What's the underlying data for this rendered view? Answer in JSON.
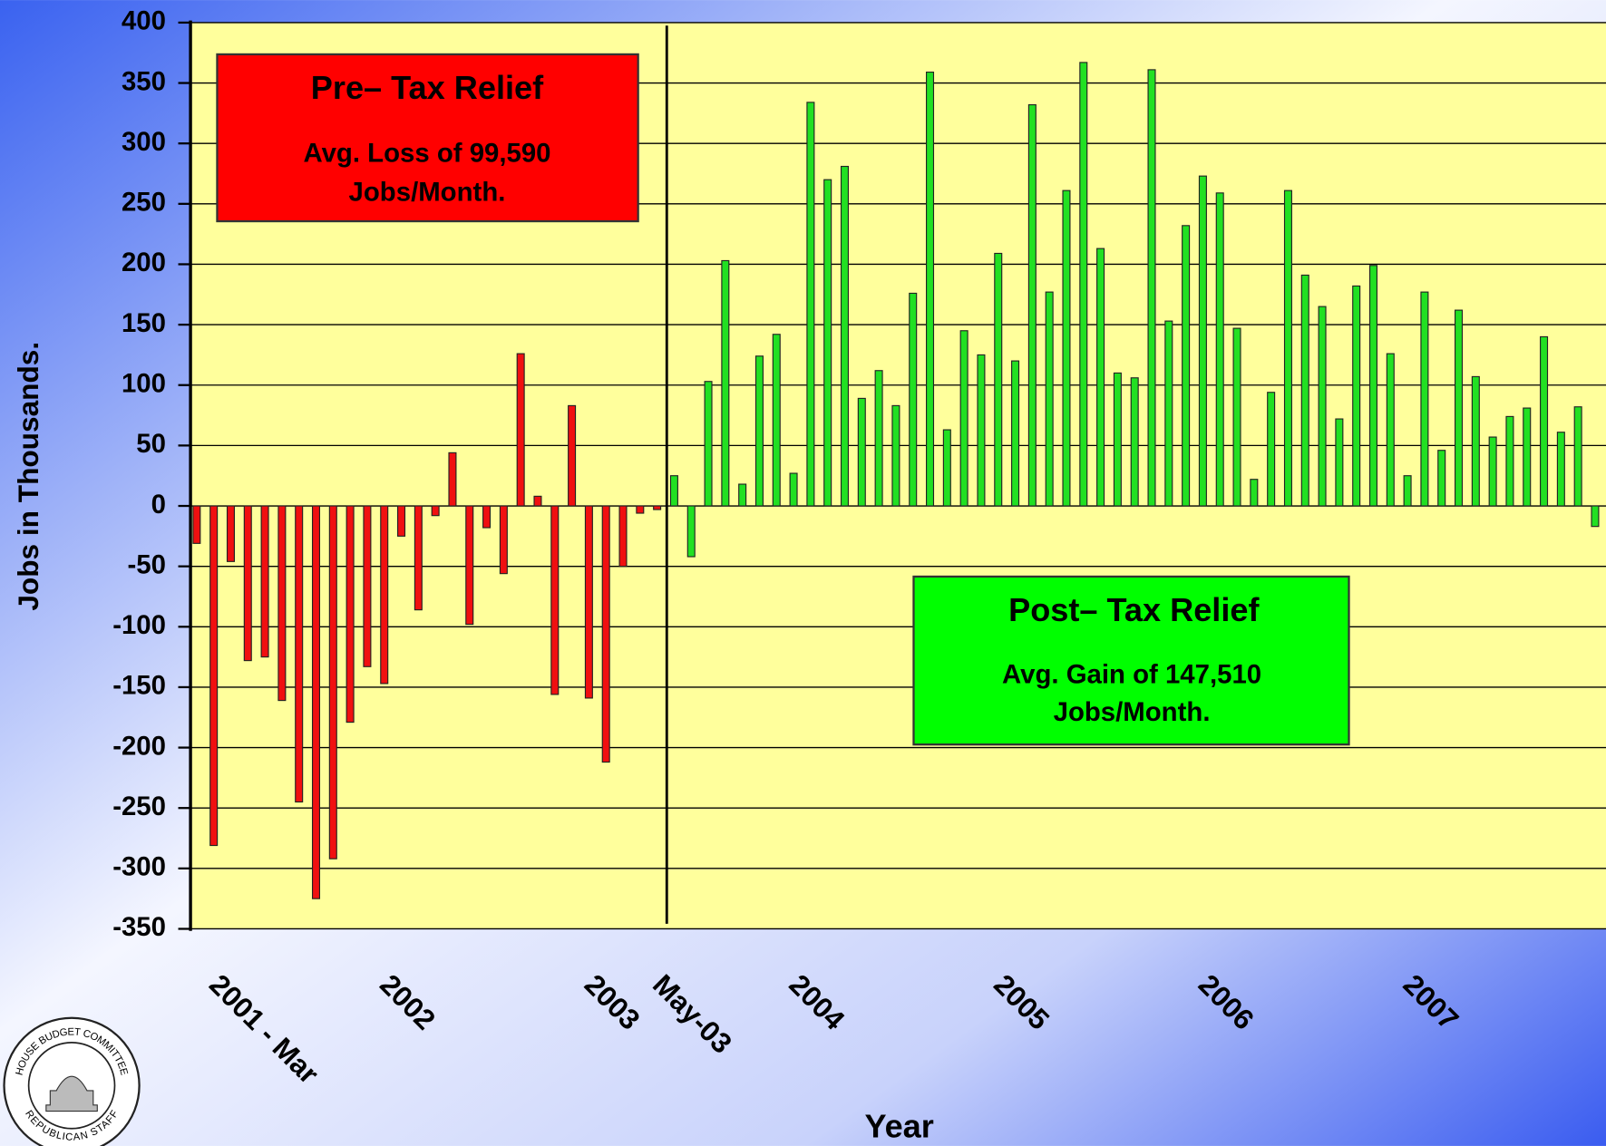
{
  "chart_data": {
    "type": "bar",
    "y_label": "Jobs in Thousands.",
    "x_label": "Year",
    "categories": [
      "2001 - Mar",
      null,
      null,
      null,
      null,
      null,
      null,
      null,
      null,
      null,
      "2002",
      null,
      null,
      null,
      null,
      null,
      null,
      null,
      null,
      null,
      null,
      null,
      "2003",
      null,
      null,
      null,
      "May-03",
      null,
      null,
      null,
      null,
      null,
      null,
      null,
      "2004",
      null,
      null,
      null,
      null,
      null,
      null,
      null,
      null,
      null,
      null,
      null,
      "2005",
      null,
      null,
      null,
      null,
      null,
      null,
      null,
      null,
      null,
      null,
      null,
      "2006",
      null,
      null,
      null,
      null,
      null,
      null,
      null,
      null,
      null,
      null,
      null,
      "2007",
      null,
      null,
      null,
      null,
      null,
      null,
      null,
      null,
      null,
      null,
      null,
      null
    ],
    "values": [
      -31,
      -281,
      -46,
      -128,
      -125,
      -161,
      -245,
      -325,
      -292,
      -179,
      -133,
      -147,
      -25,
      -86,
      -8,
      44,
      -98,
      -18,
      -56,
      126,
      8,
      -156,
      83,
      -159,
      -212,
      -50,
      -6,
      -3,
      25,
      -42,
      103,
      203,
      18,
      124,
      142,
      27,
      334,
      270,
      281,
      89,
      112,
      83,
      176,
      359,
      63,
      145,
      125,
      209,
      120,
      332,
      177,
      261,
      367,
      213,
      110,
      106,
      361,
      153,
      232,
      273,
      259,
      147,
      22,
      94,
      261,
      191,
      165,
      72,
      182,
      199,
      126,
      25,
      177,
      46,
      162,
      107,
      57,
      74,
      81,
      140,
      61,
      82,
      -17
    ],
    "colors": [
      "#f01010",
      "#f01010",
      "#f01010",
      "#f01010",
      "#f01010",
      "#f01010",
      "#f01010",
      "#f01010",
      "#f01010",
      "#f01010",
      "#f01010",
      "#f01010",
      "#f01010",
      "#f01010",
      "#f01010",
      "#f01010",
      "#f01010",
      "#f01010",
      "#f01010",
      "#f01010",
      "#f01010",
      "#f01010",
      "#f01010",
      "#f01010",
      "#f01010",
      "#f01010",
      "#f01010",
      "#f01010",
      "#22e022",
      "#22e022",
      "#22e022",
      "#22e022",
      "#22e022",
      "#22e022",
      "#22e022",
      "#22e022",
      "#22e022",
      "#22e022",
      "#22e022",
      "#22e022",
      "#22e022",
      "#22e022",
      "#22e022",
      "#22e022",
      "#22e022",
      "#22e022",
      "#22e022",
      "#22e022",
      "#22e022",
      "#22e022",
      "#22e022",
      "#22e022",
      "#22e022",
      "#22e022",
      "#22e022",
      "#22e022",
      "#22e022",
      "#22e022",
      "#22e022",
      "#22e022",
      "#22e022",
      "#22e022",
      "#22e022",
      "#22e022",
      "#22e022",
      "#22e022",
      "#22e022",
      "#22e022",
      "#22e022",
      "#22e022",
      "#22e022",
      "#22e022",
      "#22e022",
      "#22e022",
      "#22e022",
      "#22e022",
      "#22e022",
      "#22e022",
      "#22e022",
      "#22e022",
      "#22e022",
      "#22e022",
      "#22e022"
    ],
    "ylim": [
      -350,
      400
    ],
    "yticks": [
      -350,
      -300,
      -250,
      -200,
      -150,
      -100,
      -50,
      0,
      50,
      100,
      150,
      200,
      250,
      300,
      350,
      400
    ],
    "grid": true,
    "annotations": [
      {
        "title": "Pre– Tax Relief",
        "text": [
          "Avg. Loss of 99,590",
          "Jobs/Month."
        ]
      },
      {
        "title": "Post– Tax Relief",
        "text": [
          "Avg. Gain of 147,510",
          "Jobs/Month."
        ]
      }
    ]
  },
  "logo": {
    "top": "HOUSE BUDGET COMMITTEE",
    "bottom": "REPUBLICAN STAFF"
  }
}
